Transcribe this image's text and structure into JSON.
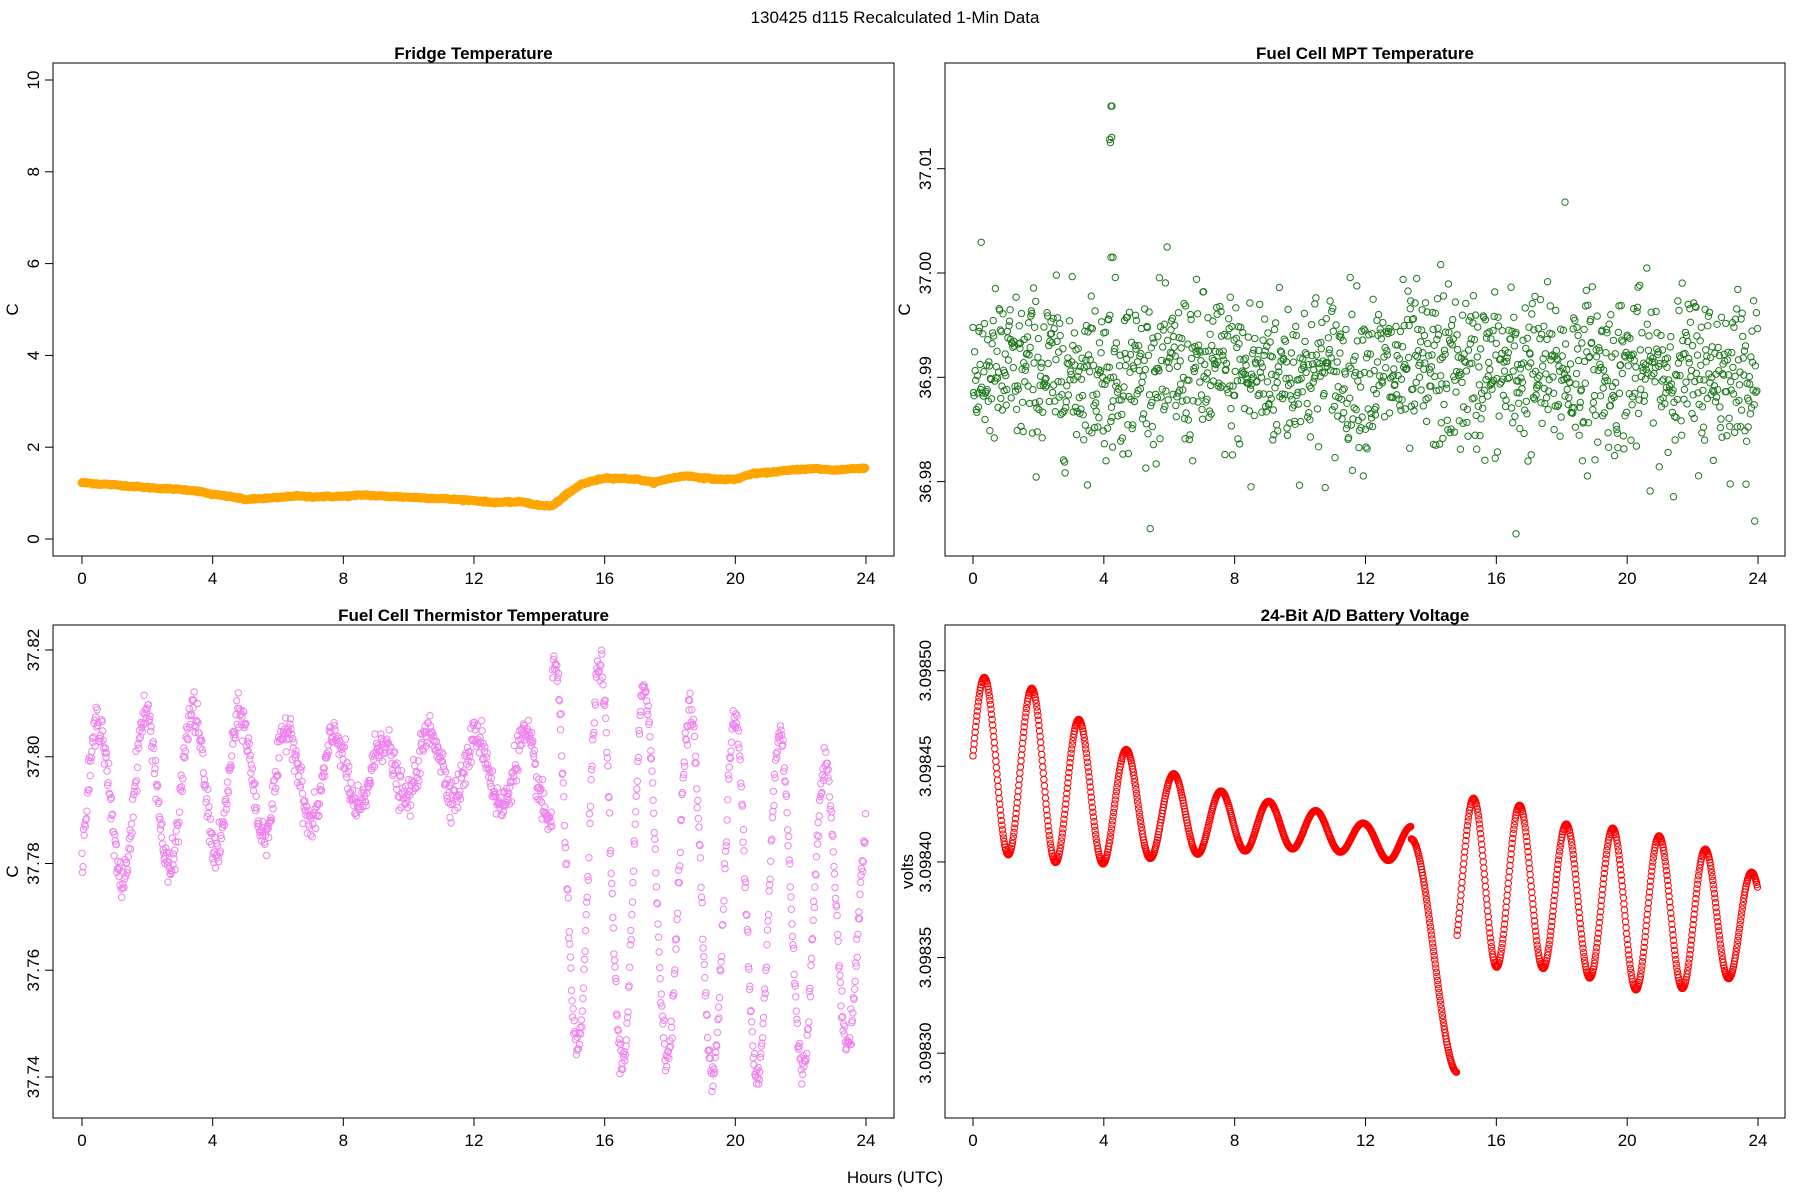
{
  "figure": {
    "suptitle": "130425   d115   Recalculated 1-Min Data",
    "shared_xlabel": "Hours (UTC)"
  },
  "chart_data": [
    {
      "id": "fridge",
      "type": "scatter",
      "title": "Fridge Temperature",
      "xlabel": "",
      "ylabel": "C",
      "color": "#FFA500",
      "marker": "filled",
      "xlim": [
        0,
        24
      ],
      "ylim": [
        0,
        10
      ],
      "x_ticks": [
        0,
        4,
        8,
        12,
        16,
        20,
        24
      ],
      "y_ticks": [
        0,
        2,
        4,
        6,
        8,
        10
      ],
      "y_tick_labels": [
        "0",
        "2",
        "4",
        "6",
        "8",
        "10"
      ],
      "series_profile": [
        [
          0,
          1.23
        ],
        [
          0.5,
          1.2
        ],
        [
          1,
          1.18
        ],
        [
          2,
          1.12
        ],
        [
          3,
          1.08
        ],
        [
          3.5,
          1.05
        ],
        [
          4,
          0.97
        ],
        [
          4.5,
          0.93
        ],
        [
          5,
          0.86
        ],
        [
          6,
          0.9
        ],
        [
          6.5,
          0.94
        ],
        [
          7,
          0.92
        ],
        [
          8,
          0.93
        ],
        [
          8.7,
          0.96
        ],
        [
          9,
          0.94
        ],
        [
          10,
          0.91
        ],
        [
          11,
          0.88
        ],
        [
          12,
          0.84
        ],
        [
          12.5,
          0.8
        ],
        [
          13,
          0.8
        ],
        [
          13.5,
          0.81
        ],
        [
          14,
          0.73
        ],
        [
          14.4,
          0.72
        ],
        [
          14.8,
          0.95
        ],
        [
          15.3,
          1.2
        ],
        [
          16,
          1.33
        ],
        [
          16.5,
          1.32
        ],
        [
          17,
          1.3
        ],
        [
          17.5,
          1.23
        ],
        [
          18,
          1.32
        ],
        [
          18.5,
          1.38
        ],
        [
          19,
          1.33
        ],
        [
          19.5,
          1.3
        ],
        [
          20,
          1.3
        ],
        [
          20.5,
          1.42
        ],
        [
          21,
          1.45
        ],
        [
          22,
          1.52
        ],
        [
          22.5,
          1.53
        ],
        [
          23,
          1.5
        ],
        [
          24,
          1.55
        ]
      ]
    },
    {
      "id": "mpt",
      "type": "scatter",
      "title": "Fuel Cell MPT Temperature",
      "xlabel": "",
      "ylabel": "C",
      "color": "#1F7A1F",
      "marker": "open",
      "xlim": [
        0,
        24
      ],
      "ylim": [
        36.9745,
        37.0185
      ],
      "x_ticks": [
        0,
        4,
        8,
        12,
        16,
        20,
        24
      ],
      "y_ticks": [
        36.98,
        36.99,
        37.0,
        37.01
      ],
      "y_tick_labels": [
        "36.98",
        "36.99",
        "37.00",
        "37.01"
      ],
      "center": 36.9905,
      "spread": 0.0038,
      "outliers": [
        [
          4.22,
          37.016
        ],
        [
          4.25,
          37.016
        ],
        [
          4.18,
          37.0128
        ],
        [
          4.2,
          37.0125
        ],
        [
          4.24,
          37.013
        ],
        [
          4.22,
          37.0015
        ],
        [
          4.28,
          37.0015
        ],
        [
          18.1,
          37.0068
        ],
        [
          16.6,
          36.975
        ],
        [
          14.3,
          37.0008
        ],
        [
          8.5,
          36.9795
        ]
      ]
    },
    {
      "id": "thermistor",
      "type": "scatter",
      "title": "Fuel Cell Thermistor Temperature",
      "xlabel": "",
      "ylabel": "C",
      "color": "#EE82EE",
      "marker": "open",
      "xlim": [
        0,
        24
      ],
      "ylim": [
        37.7355,
        37.8215
      ],
      "x_ticks": [
        0,
        4,
        8,
        12,
        16,
        20,
        24
      ],
      "y_ticks": [
        37.74,
        37.76,
        37.78,
        37.8,
        37.82
      ],
      "y_tick_labels": [
        "37.74",
        "37.76",
        "37.78",
        "37.80",
        "37.82"
      ],
      "phase1": {
        "x_end": 14.4,
        "period": 1.45,
        "center_profile": [
          [
            0,
            37.79
          ],
          [
            1,
            37.792
          ],
          [
            3,
            37.794
          ],
          [
            5,
            37.796
          ],
          [
            7,
            37.796
          ],
          [
            9,
            37.797
          ],
          [
            11,
            37.799
          ],
          [
            13,
            37.797
          ],
          [
            14.4,
            37.796
          ]
        ],
        "amp_profile": [
          [
            0,
            0.016
          ],
          [
            3,
            0.015
          ],
          [
            6,
            0.01
          ],
          [
            9,
            0.006
          ],
          [
            12,
            0.006
          ],
          [
            14.4,
            0.008
          ]
        ]
      },
      "phase2": {
        "x_start": 14.4,
        "period": 1.38,
        "center_profile": [
          [
            14.4,
            37.782
          ],
          [
            16,
            37.78
          ],
          [
            18,
            37.777
          ],
          [
            20,
            37.773
          ],
          [
            22,
            37.772
          ],
          [
            24,
            37.77
          ]
        ],
        "amp_profile": [
          [
            14.4,
            0.035
          ],
          [
            16,
            0.038
          ],
          [
            18,
            0.033
          ],
          [
            20,
            0.034
          ],
          [
            22,
            0.031
          ],
          [
            24,
            0.022
          ]
        ]
      }
    },
    {
      "id": "battery",
      "type": "scatter",
      "title": "24-Bit A/D Battery Voltage",
      "xlabel": "",
      "ylabel": "volts",
      "color": "#FF0000",
      "marker": "open",
      "xlim": [
        0,
        24
      ],
      "ylim": [
        3.098275,
        3.098515
      ],
      "x_ticks": [
        0,
        4,
        8,
        12,
        16,
        20,
        24
      ],
      "y_ticks": [
        3.0983,
        3.09835,
        3.0984,
        3.09845,
        3.0985
      ],
      "y_tick_labels": [
        "3.09830",
        "3.09835",
        "3.09840",
        "3.09845",
        "3.09850"
      ],
      "phase1": {
        "x_end": 13.4,
        "period": 1.45,
        "phase_peak_at": 0.35,
        "center_profile": [
          [
            0,
            3.098453
          ],
          [
            2,
            3.098445
          ],
          [
            4,
            3.098432
          ],
          [
            6,
            3.098425
          ],
          [
            8,
            3.09842
          ],
          [
            10,
            3.098418
          ],
          [
            12,
            3.098412
          ],
          [
            13.4,
            3.098408
          ]
        ],
        "amp_profile": [
          [
            0,
            4.48e-05
          ],
          [
            2,
            4.5e-05
          ],
          [
            4,
            3.3e-05
          ],
          [
            6,
            2.2e-05
          ],
          [
            8,
            1.45e-05
          ],
          [
            10,
            1.1e-05
          ],
          [
            12,
            8e-06
          ],
          [
            13.4,
            1.05e-05
          ]
        ]
      },
      "drop": {
        "x_start": 13.4,
        "x_end": 14.8,
        "y_start": 3.098412,
        "y_end": 3.09829
      },
      "phase2": {
        "x_start": 14.8,
        "period": 1.42,
        "phase_peak_at": 15.3,
        "center_profile": [
          [
            14.8,
            3.098388
          ],
          [
            16,
            3.09839
          ],
          [
            18,
            3.098382
          ],
          [
            20,
            3.098375
          ],
          [
            22,
            3.098372
          ],
          [
            24,
            3.098368
          ]
        ],
        "amp_profile": [
          [
            14.8,
            4.4e-05
          ],
          [
            16,
            4.5e-05
          ],
          [
            18,
            3.8e-05
          ],
          [
            20,
            4.2e-05
          ],
          [
            22,
            3.8e-05
          ],
          [
            24,
            2.5e-05
          ]
        ]
      }
    }
  ]
}
